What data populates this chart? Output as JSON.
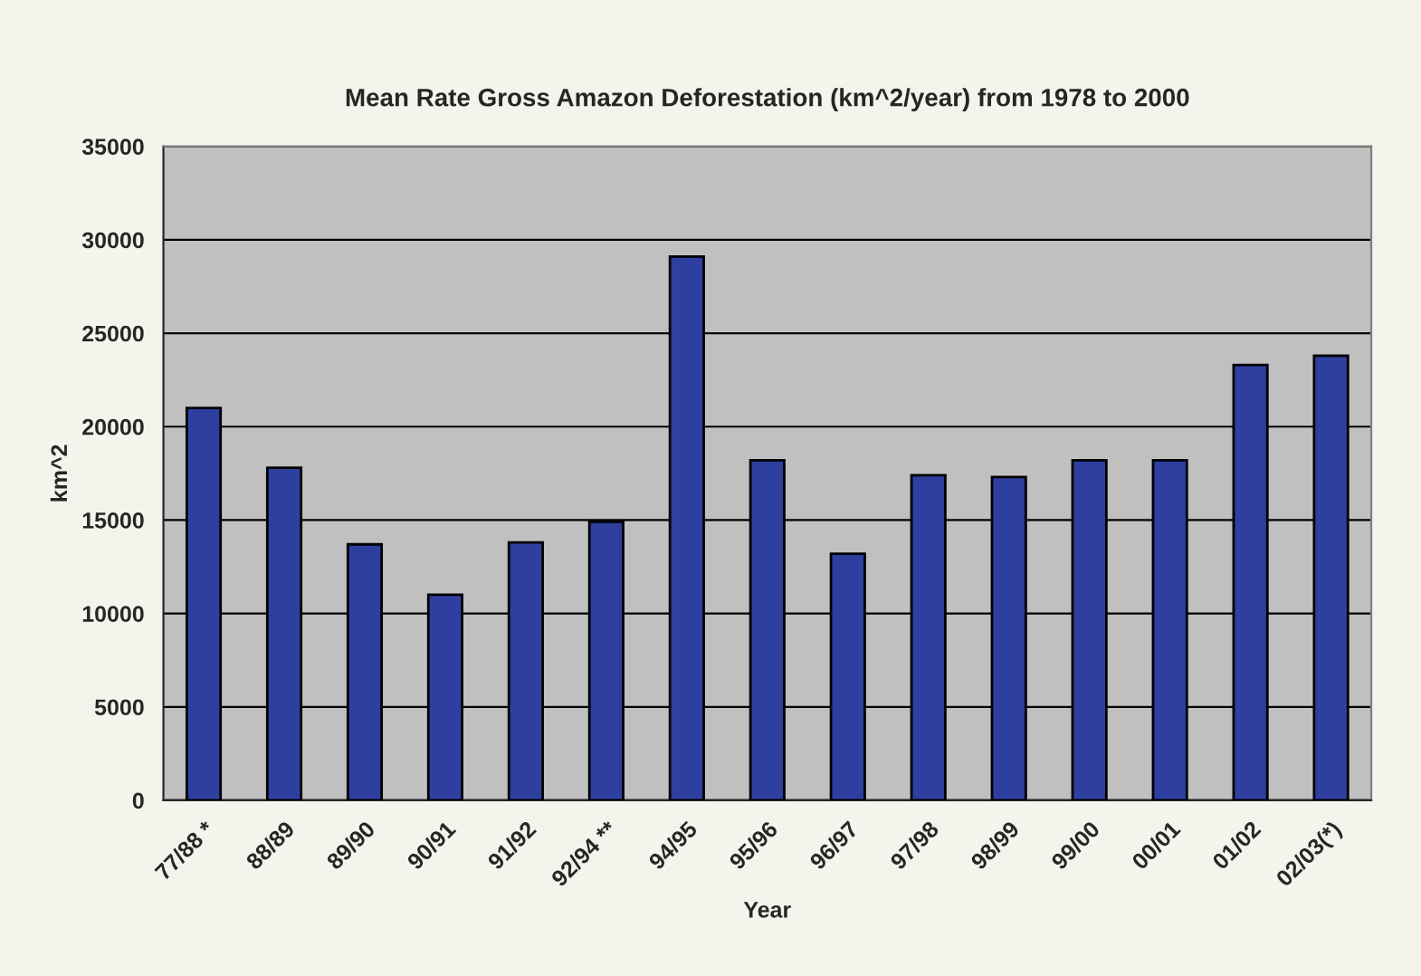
{
  "chart_data": {
    "type": "bar",
    "title": "Mean Rate Gross Amazon Deforestation (km^2/year) from 1978 to 2000",
    "xlabel": "Year",
    "ylabel": "km^2",
    "categories": [
      "77/88 *",
      "88/89",
      "89/90",
      "90/91",
      "91/92",
      "92/94 **",
      "94/95",
      "95/96",
      "96/97",
      "97/98",
      "98/99",
      "99/00",
      "00/01",
      "01/02",
      "02/03(*)"
    ],
    "series": [
      {
        "color": "#2f3f9f",
        "values": [
          21000,
          17800,
          13700,
          11000,
          13800,
          14900,
          29100,
          18200,
          13200,
          17400,
          17300,
          18200,
          18200,
          23300,
          23800
        ]
      }
    ],
    "ylim": [
      0,
      35000
    ],
    "yticks": [
      0,
      5000,
      10000,
      15000,
      20000,
      25000,
      30000,
      35000
    ],
    "grid": "y",
    "legend": false
  }
}
